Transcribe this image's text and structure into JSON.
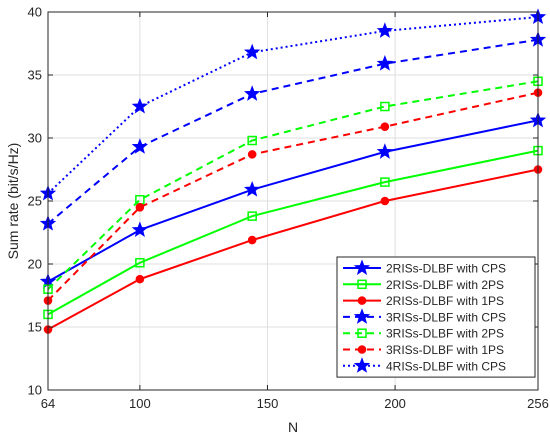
{
  "chart_data": {
    "type": "line",
    "xlabel": "N",
    "ylabel": "Sum rate (bit/s/Hz)",
    "xlim": [
      64,
      256
    ],
    "ylim": [
      10,
      40
    ],
    "x_ticks": [
      64,
      100,
      150,
      200,
      256
    ],
    "y_ticks": [
      10,
      15,
      20,
      25,
      30,
      35,
      40
    ],
    "grid": true,
    "legend_position": "bottom-right",
    "x": [
      64,
      100,
      144,
      196,
      256
    ],
    "series": [
      {
        "name": "2RISs-DLBF with CPS",
        "values": [
          18.6,
          22.7,
          25.9,
          28.9,
          31.4
        ],
        "color": "#0000FF",
        "dash": "solid",
        "marker": "star"
      },
      {
        "name": "2RISs-DLBF with 2PS",
        "values": [
          16.0,
          20.1,
          23.8,
          26.5,
          29.0
        ],
        "color": "#00FF00",
        "dash": "solid",
        "marker": "square"
      },
      {
        "name": "2RISs-DLBF with 1PS",
        "values": [
          14.8,
          18.8,
          21.9,
          25.0,
          27.5
        ],
        "color": "#FF0000",
        "dash": "solid",
        "marker": "dot"
      },
      {
        "name": "3RISs-DLBF with CPS",
        "values": [
          23.2,
          29.3,
          33.5,
          35.9,
          37.8
        ],
        "color": "#0000FF",
        "dash": "dashed",
        "marker": "star"
      },
      {
        "name": "3RISs-DLBF with 2PS",
        "values": [
          18.0,
          25.1,
          29.8,
          32.5,
          34.5
        ],
        "color": "#00FF00",
        "dash": "dashed",
        "marker": "square"
      },
      {
        "name": "3RISs-DLBF with 1PS",
        "values": [
          17.1,
          24.5,
          28.7,
          30.9,
          33.6
        ],
        "color": "#FF0000",
        "dash": "dashed",
        "marker": "dot"
      },
      {
        "name": "4RISs-DLBF with CPS",
        "values": [
          25.6,
          32.5,
          36.8,
          38.5,
          39.6
        ],
        "color": "#0000FF",
        "dash": "dotted",
        "marker": "star"
      }
    ]
  }
}
